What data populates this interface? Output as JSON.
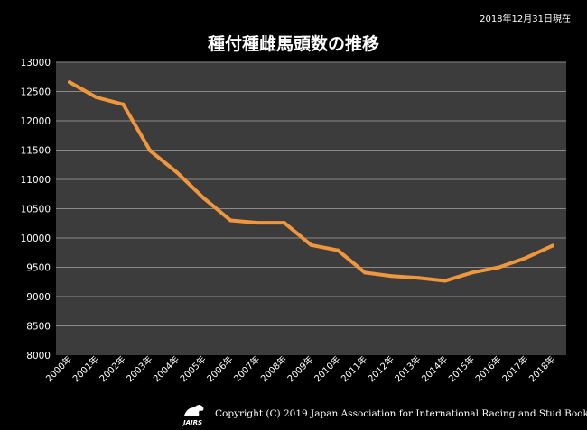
{
  "title": "種付種雌馬頭数の推移",
  "date_note": "2018年12月31日現在",
  "copyright": "Copyright (C) 2019 Japan Association for International Racing and Stud Book.",
  "logo_text": "JAIRS",
  "colors": {
    "background": "#000000",
    "plot_background": "#3c3c3c",
    "line": "#f0963c",
    "grid": "#8a8a8a",
    "text": "#ffffff"
  },
  "chart_data": {
    "type": "line",
    "title": "種付種雌馬頭数の推移",
    "xlabel": "",
    "ylabel": "",
    "ylim": [
      8000,
      13000
    ],
    "y_ticks": [
      8000,
      8500,
      9000,
      9500,
      10000,
      10500,
      11000,
      11500,
      12000,
      12500,
      13000
    ],
    "grid": true,
    "legend": "none",
    "categories": [
      "2000年",
      "2001年",
      "2002年",
      "2003年",
      "2004年",
      "2005年",
      "2006年",
      "2007年",
      "2008年",
      "2009年",
      "2010年",
      "2011年",
      "2012年",
      "2013年",
      "2014年",
      "2015年",
      "2016年",
      "2017年",
      "2018年"
    ],
    "series": [
      {
        "name": "",
        "values": [
          12660,
          12400,
          12280,
          11490,
          11120,
          10680,
          10300,
          10260,
          10260,
          9880,
          9790,
          9410,
          9350,
          9320,
          9270,
          9410,
          9500,
          9660,
          9870
        ]
      }
    ]
  }
}
